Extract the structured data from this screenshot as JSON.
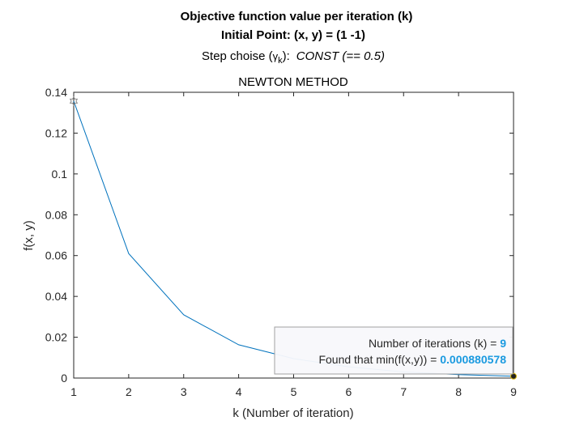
{
  "chart_data": {
    "type": "line",
    "title_line1": "Objective function value per iteration (k)",
    "title_line2": "Initial Point: (x, y) = (1 -1)",
    "title_line3_prefix": "Step choise (",
    "title_line3_gamma": "γ",
    "title_line3_sub": "k",
    "title_line3_mid": "):",
    "title_line3_italic": "CONST (== 0.5)",
    "axes_title": "NEWTON METHOD",
    "xlabel": "k (Number of iteration)",
    "ylabel": "f(x, y)",
    "xlim": [
      1,
      9
    ],
    "ylim": [
      0,
      0.14
    ],
    "x_ticks": [
      "1",
      "2",
      "3",
      "4",
      "5",
      "6",
      "7",
      "8",
      "9"
    ],
    "y_ticks": [
      "0",
      "0.02",
      "0.04",
      "0.06",
      "0.08",
      "0.1",
      "0.12",
      "0.14"
    ],
    "grid": false,
    "line_color": "#0072bd",
    "x": [
      1,
      2,
      3,
      4,
      5,
      6,
      7,
      8,
      9
    ],
    "y": [
      0.1357,
      0.061,
      0.031,
      0.0163,
      0.0095,
      0.0055,
      0.003,
      0.0017,
      0.00088
    ],
    "start_marker": "hexagram",
    "end_marker": "dot",
    "annotation": {
      "line1_label": "Number of iterations (k) = ",
      "line1_value": "9",
      "line2_label": "Found that min(f(x,y)) = ",
      "line2_value": "0.000880578",
      "value_color": "#1a9ae0"
    }
  }
}
